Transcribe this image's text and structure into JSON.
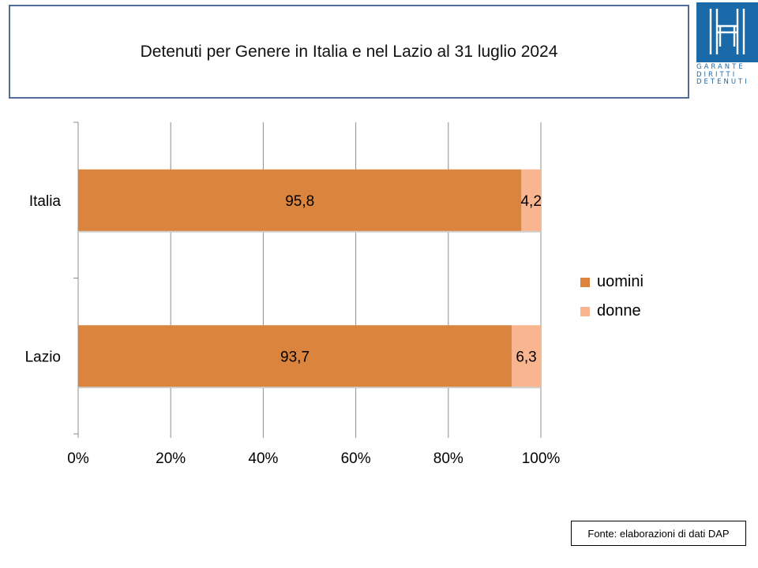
{
  "header": {
    "title": "Detenuti per Genere in Italia e nel Lazio al 31 luglio 2024"
  },
  "logo": {
    "icon": "garante-h-logo-icon",
    "color": "#1a69a8",
    "lines": [
      "GARANTE",
      "DIRITTI",
      "DETENUTI"
    ]
  },
  "chart_data": {
    "type": "bar",
    "orientation": "horizontal",
    "stacked": "percent",
    "categories": [
      "Italia",
      "Lazio"
    ],
    "series": [
      {
        "name": "uomini",
        "values": [
          95.8,
          93.7
        ],
        "labels": [
          "95,8",
          "93,7"
        ],
        "color": "#db843d"
      },
      {
        "name": "donne",
        "values": [
          4.2,
          6.3
        ],
        "labels": [
          "4,2",
          "6,3"
        ],
        "color": "#f9b490"
      }
    ],
    "xlim": [
      0,
      100
    ],
    "xticks": [
      {
        "value": 0,
        "label": "0%"
      },
      {
        "value": 20,
        "label": "20%"
      },
      {
        "value": 40,
        "label": "40%"
      },
      {
        "value": 60,
        "label": "60%"
      },
      {
        "value": 80,
        "label": "80%"
      },
      {
        "value": 100,
        "label": "100%"
      }
    ],
    "grid": "vertical",
    "legend": "right"
  },
  "footer": {
    "source": "Fonte: elaborazioni di dati DAP"
  }
}
